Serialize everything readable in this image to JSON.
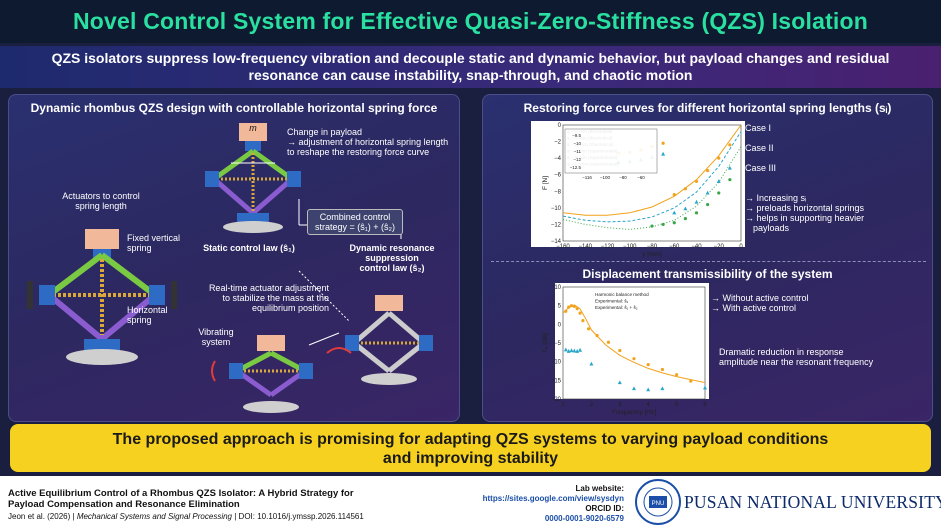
{
  "header": {
    "title": "Novel Control System for Effective Quasi-Zero-Stiffness (QZS) Isolation",
    "subtitle_line1": "QZS isolators suppress low-frequency vibration and decouple static and dynamic behavior, but payload changes and residual",
    "subtitle_line2": "resonance can cause instability, snap-through, and chaotic motion"
  },
  "left_panel": {
    "heading": "Dynamic rhombus QZS design with controllable horizontal spring force",
    "mass_label": "m",
    "payload_line1": "Change in payload",
    "payload_line2": "→ adjustment of horizontal spring length",
    "payload_line3": "to reshape the restoring force curve",
    "actuators_line1": "Actuators to control",
    "actuators_line2": "spring length",
    "fixed_line1": "Fixed vertical",
    "fixed_line2": "spring",
    "horizontal_line1": "Horizontal",
    "horizontal_line2": "spring",
    "static_law": "Static control law (ŝ₁)",
    "combined_line1": "Combined control",
    "combined_line2": "strategy = (ŝ₁) + (ŝ₂)",
    "dynamic_line1": "Dynamic resonance suppression",
    "dynamic_line2": "control law (ŝ₂)",
    "realtime_line1": "Real-time actuator adjustment",
    "realtime_line2": "to stabilize the mass at the",
    "realtime_line3": "equilibrium position",
    "vibrating_line1": "Vibrating",
    "vibrating_line2": "system"
  },
  "right_panel": {
    "heading_top": "Restoring force curves for different horizontal spring lengths (sᵢ)",
    "case1": "Case I",
    "case2": "Case II",
    "case3": "Case III",
    "force_note_line1": "→ Increasing sᵢ",
    "force_note_line2": "→ preloads horizontal springs",
    "force_note_line3": "→ helps in supporting heavier",
    "force_note_line4": "payloads",
    "heading_bottom": "Displacement transmissibility of the system",
    "trans_note1": "→ Without active control",
    "trans_note2": "→ With active control",
    "reduction_line1": "Dramatic reduction in response",
    "reduction_line2": "amplitude near the resonant frequency"
  },
  "chart_data": [
    {
      "type": "line",
      "xlabel": "y [mm]",
      "ylabel": "F [N]",
      "xlim": [
        -160,
        0
      ],
      "ylim": [
        -14,
        0
      ],
      "xticks": [
        "−160",
        "−140",
        "−120",
        "−100",
        "−80",
        "−60",
        "−40",
        "−20",
        "0"
      ],
      "yticks": [
        "0",
        "−2",
        "−4",
        "−6",
        "−8",
        "−10",
        "−12",
        "−14"
      ],
      "legend": [
        "sᵢ = 0 mm (theoretical)",
        "sᵢ = 5 mm (theoretical)",
        "sᵢ =10 mm (theoretical)",
        "sᵢ = 0 mm (experimental)",
        "sᵢ = 5 mm (experimental)",
        "sᵢ =10 mm (experimental)"
      ],
      "inset_yticks": [
        "−9.5",
        "−10",
        "−11",
        "−12",
        "−12.5"
      ],
      "inset_xticks": [
        "−116",
        "−100",
        "−80",
        "−60"
      ],
      "series": [
        {
          "name": "sᵢ = 0 mm (theoretical)",
          "color": "#f2a21b",
          "x": [
            -160,
            -140,
            -120,
            -100,
            -80,
            -60,
            -40,
            -20,
            0
          ],
          "y": [
            -10.6,
            -10.9,
            -10.9,
            -10.6,
            -9.9,
            -8.6,
            -6.6,
            -3.7,
            0
          ]
        },
        {
          "name": "sᵢ = 5 mm (theoretical)",
          "color": "#2aa6c9",
          "x": [
            -160,
            -140,
            -120,
            -100,
            -80,
            -60,
            -40,
            -20,
            0
          ],
          "y": [
            -11.0,
            -11.5,
            -11.7,
            -11.6,
            -11.1,
            -10.0,
            -8.1,
            -5.0,
            -0.8
          ]
        },
        {
          "name": "sᵢ =10 mm (theoretical)",
          "color": "#3aa64a",
          "x": [
            -160,
            -140,
            -120,
            -100,
            -80,
            -60,
            -40,
            -20,
            0
          ],
          "y": [
            -11.4,
            -12.0,
            -12.4,
            -12.6,
            -12.3,
            -11.5,
            -9.8,
            -6.9,
            -2.6
          ]
        },
        {
          "name": "sᵢ = 0 mm (experimental)",
          "color": "#f2a21b",
          "x": [
            -110,
            -100,
            -90,
            -80,
            -70,
            -60,
            -50,
            -40,
            -30,
            -20,
            -10
          ],
          "y": [
            -3.4,
            -3.3,
            -3.0,
            -2.6,
            -2.2,
            -8.4,
            -7.7,
            -6.8,
            -5.5,
            -4.0,
            -2.4
          ]
        },
        {
          "name": "sᵢ = 5 mm (experimental)",
          "color": "#2aa6c9",
          "x": [
            -110,
            -100,
            -90,
            -80,
            -70,
            -60,
            -50,
            -40,
            -30,
            -20,
            -10
          ],
          "y": [
            -4.5,
            -4.4,
            -4.2,
            -3.9,
            -3.5,
            -10.6,
            -10.1,
            -9.3,
            -8.2,
            -6.8,
            -5.2
          ]
        },
        {
          "name": "sᵢ =10 mm (experimental)",
          "color": "#3aa64a",
          "x": [
            -80,
            -70,
            -60,
            -50,
            -40,
            -30,
            -20,
            -10
          ],
          "y": [
            -12.2,
            -12.0,
            -11.8,
            -11.3,
            -10.6,
            -9.6,
            -8.2,
            -6.6
          ]
        }
      ]
    },
    {
      "type": "line",
      "xlabel": "Frequency [Hz]",
      "ylabel": "Tₑ [dB]",
      "xlim": [
        1,
        6
      ],
      "ylim": [
        -20,
        10
      ],
      "xticks": [
        "1",
        "2",
        "3",
        "4",
        "5",
        "6"
      ],
      "yticks": [
        "10",
        "5",
        "0",
        "−5",
        "−10",
        "−15",
        "−20"
      ],
      "legend": [
        "Harmonic balance method",
        "Experimental: ŝ₁",
        "Experimental: ŝ₁ + ŝ₂"
      ],
      "series": [
        {
          "name": "Harmonic balance method",
          "color": "#f2a21b",
          "x": [
            1.0,
            1.2,
            1.4,
            1.6,
            1.8,
            2.0,
            2.5,
            3.0,
            3.5,
            4.0,
            4.5,
            5.0,
            5.5,
            6.0
          ],
          "y": [
            3.0,
            4.5,
            5.2,
            4.2,
            1.5,
            -1.5,
            -5.5,
            -8.3,
            -10.2,
            -11.8,
            -13.0,
            -14.0,
            -14.8,
            -15.6
          ]
        },
        {
          "name": "Experimental: ŝ₁",
          "color": "#f2a21b",
          "x": [
            1.1,
            1.2,
            1.3,
            1.4,
            1.5,
            1.6,
            1.7,
            1.9,
            2.2,
            2.6,
            3.0,
            3.5,
            4.0,
            4.5,
            5.0,
            5.5
          ],
          "y": [
            3.5,
            4.6,
            5.0,
            4.8,
            4.2,
            3.0,
            1.0,
            -1.2,
            -3.0,
            -4.8,
            -7.0,
            -9.2,
            -10.8,
            -12.1,
            -13.5,
            -15.2
          ]
        },
        {
          "name": "Experimental: ŝ₁ + ŝ₂",
          "color": "#2aa6c9",
          "x": [
            1.1,
            1.2,
            1.3,
            1.4,
            1.5,
            1.6,
            2.0,
            3.0,
            3.5,
            4.0,
            4.5,
            6.0
          ],
          "y": [
            -6.8,
            -7.2,
            -7.0,
            -7.1,
            -7.2,
            -6.9,
            -10.6,
            -15.6,
            -17.2,
            -17.5,
            -17.2,
            -17.0
          ]
        }
      ]
    }
  ],
  "conclusion": {
    "line1": "The proposed approach is promising for adapting QZS systems to varying payload conditions",
    "line2": "and improving stability"
  },
  "footer": {
    "paper_title_line1": "Active Equilibrium Control of a Rhombus QZS Isolator: A Hybrid Strategy for",
    "paper_title_line2": "Payload Compensation and Resonance Elimination",
    "authors": "Jeon et al. (2026)",
    "journal": "Mechanical Systems and Signal Processing",
    "doi": "DOI: 10.1016/j.ymssp.2026.114561",
    "lab_label": "Lab website:",
    "lab_url": "https://sites.google.com/view/sysdyn",
    "orcid_label": "ORCID ID:",
    "orcid_id": "0000-0001-9020-6579",
    "university": "PUSAN NATIONAL UNIVERSITY",
    "seal_text": "PUSAN NATIONAL UNIVERSITY",
    "seal_year": "SINCE 1946"
  }
}
